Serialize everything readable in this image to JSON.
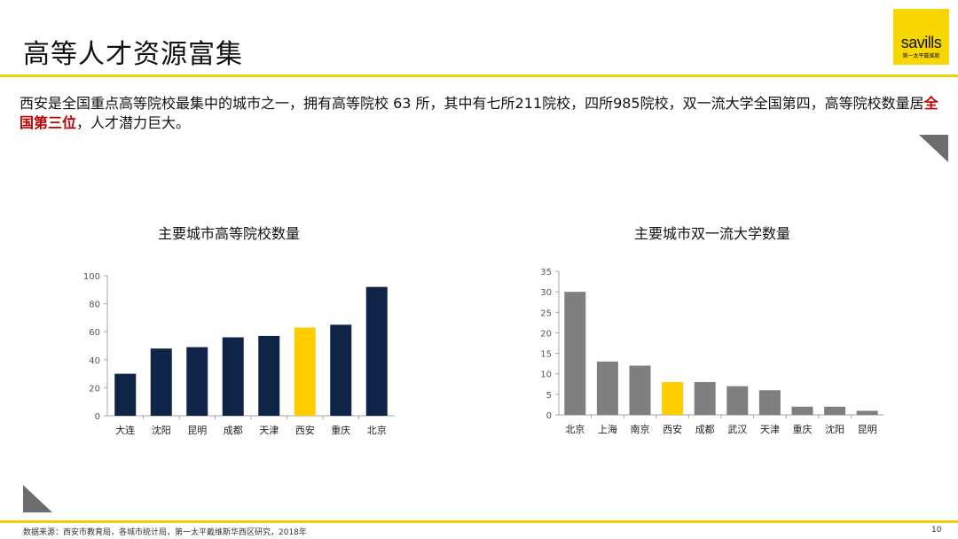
{
  "slide": {
    "title": "高等人才资源富集",
    "intro": {
      "part1": "西安是全国重点高等院校最集中的城市之一，拥有高等院校 63 所，其中有七所211院校，四所985院校，双一流大学全国第四，高等院校数量居",
      "highlight": "全国第三位",
      "part2": "，人才潜力巨大。"
    },
    "logo": {
      "word": "savills",
      "subtitle": "第一太平戴维斯"
    },
    "source": "数据来源：西安市教育局，各城市统计局，第一太平戴维斯华西区研究，2018年",
    "page_number": "10",
    "colors": {
      "accent_yellow": "#f2d100",
      "navy": "#0f2446",
      "highlight_yellow": "#ffcc00",
      "gray": "#7f7f7f",
      "highlight_red": "#c00000"
    },
    "icons": [
      "triangle-corner-top-right-icon",
      "triangle-corner-bottom-left-icon"
    ]
  },
  "chart_data": [
    {
      "type": "bar",
      "title": "主要城市高等院校数量",
      "categories": [
        "大连",
        "沈阳",
        "昆明",
        "成都",
        "天津",
        "西安",
        "重庆",
        "北京"
      ],
      "values": [
        30,
        48,
        49,
        56,
        57,
        63,
        65,
        92
      ],
      "highlight_category": "西安",
      "ylim": [
        0,
        100
      ],
      "yticks": [
        0,
        20,
        40,
        60,
        80,
        100
      ],
      "grid": false,
      "legend": "none"
    },
    {
      "type": "bar",
      "title": "主要城市双一流大学数量",
      "categories": [
        "北京",
        "上海",
        "南京",
        "西安",
        "成都",
        "武汉",
        "天津",
        "重庆",
        "沈阳",
        "昆明"
      ],
      "values": [
        30,
        13,
        12,
        8,
        8,
        7,
        6,
        2,
        2,
        1
      ],
      "highlight_category": "西安",
      "ylim": [
        0,
        35
      ],
      "yticks": [
        0,
        5,
        10,
        15,
        20,
        25,
        30,
        35
      ],
      "grid": false,
      "legend": "none"
    }
  ]
}
